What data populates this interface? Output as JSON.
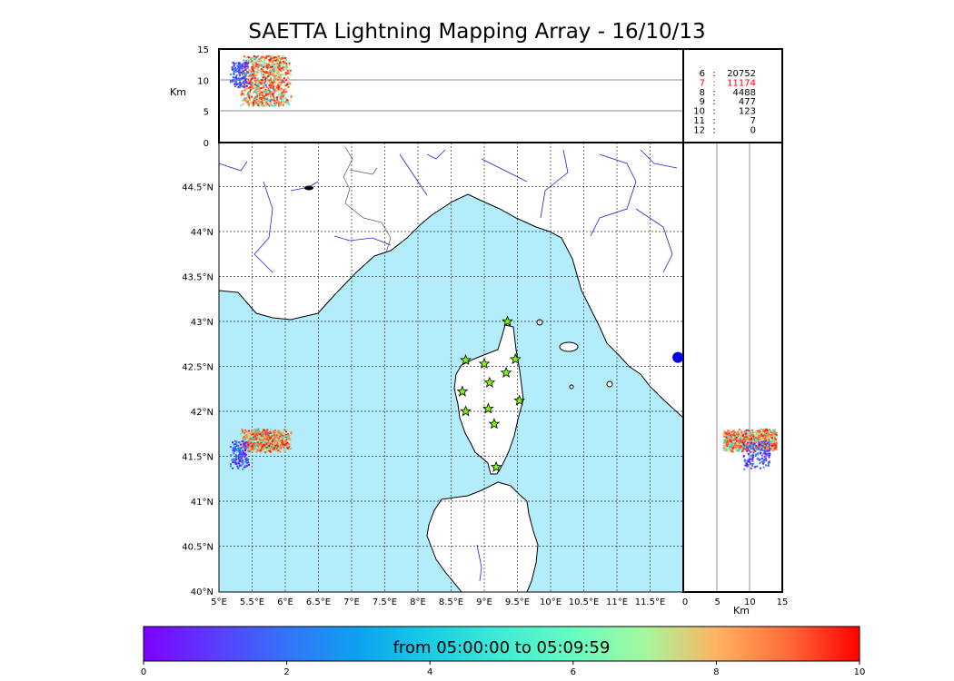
{
  "title": "SAETTA Lightning Mapping Array - 16/10/13",
  "colorbar": {
    "label": "from 05:00:00 to 05:09:59",
    "ticks": [
      "0",
      "2",
      "4",
      "6",
      "8",
      "10"
    ],
    "range": [
      0,
      10
    ]
  },
  "stats": [
    {
      "stations": "6",
      "sep": ":",
      "count": "20752",
      "highlight": false
    },
    {
      "stations": "7",
      "sep": ":",
      "count": "11174",
      "highlight": true
    },
    {
      "stations": "8",
      "sep": ":",
      "count": "4488",
      "highlight": false
    },
    {
      "stations": "9",
      "sep": ":",
      "count": "477",
      "highlight": false
    },
    {
      "stations": "10",
      "sep": ":",
      "count": "123",
      "highlight": false
    },
    {
      "stations": "11",
      "sep": ":",
      "count": "7",
      "highlight": false
    },
    {
      "stations": "12",
      "sep": ":",
      "count": "0",
      "highlight": false
    }
  ],
  "colors": {
    "sea": "#b3ecfb",
    "land": "#ffffff",
    "rivers": "#2222cc",
    "station_marker": "#7cfc00",
    "highlight_text": "#ff0000"
  },
  "chart_data": {
    "type": "scatter",
    "map": {
      "lon_range": [
        5,
        12
      ],
      "lat_range": [
        40,
        45
      ],
      "lon_ticks": [
        "5°E",
        "5.5°E",
        "6°E",
        "6.5°E",
        "7°E",
        "7.5°E",
        "8°E",
        "8.5°E",
        "9°E",
        "9.5°E",
        "10°E",
        "10.5°E",
        "11°E",
        "11.5°E"
      ],
      "lat_ticks": [
        "40°N",
        "40.5°N",
        "41°N",
        "41.5°N",
        "42°N",
        "42.5°N",
        "43°N",
        "43.5°N",
        "44°N",
        "44.5°N"
      ],
      "grid": true
    },
    "altitude_top": {
      "ylabel": "Km",
      "ylim": [
        0,
        15
      ],
      "ticks": [
        "0",
        "5",
        "10",
        "15"
      ]
    },
    "altitude_right": {
      "xlabel": "Km",
      "xlim": [
        0,
        15
      ],
      "ticks": [
        "0",
        "5",
        "10",
        "15"
      ]
    },
    "stations": [
      {
        "lon": 9.35,
        "lat": 43.0
      },
      {
        "lon": 8.72,
        "lat": 42.57
      },
      {
        "lon": 9.0,
        "lat": 42.53
      },
      {
        "lon": 9.47,
        "lat": 42.58
      },
      {
        "lon": 9.33,
        "lat": 42.43
      },
      {
        "lon": 9.08,
        "lat": 42.32
      },
      {
        "lon": 8.67,
        "lat": 42.22
      },
      {
        "lon": 9.53,
        "lat": 42.12
      },
      {
        "lon": 9.06,
        "lat": 42.03
      },
      {
        "lon": 8.72,
        "lat": 42.0
      },
      {
        "lon": 9.15,
        "lat": 41.86
      },
      {
        "lon": 9.18,
        "lat": 41.38
      }
    ],
    "lightning_clusters": [
      {
        "lon_range": [
          5.3,
          6.1
        ],
        "lat_range": [
          41.55,
          41.82
        ],
        "alt_range_km": [
          6,
          14
        ],
        "time_min": [
          0,
          10
        ],
        "dominant": "late"
      },
      {
        "lon_range": [
          5.15,
          5.45
        ],
        "lat_range": [
          41.35,
          41.7
        ],
        "alt_range_km": [
          9,
          13
        ],
        "time_min": [
          0,
          3
        ],
        "dominant": "early"
      }
    ],
    "offmap_marker": {
      "lon": 11.92,
      "lat": 42.6
    }
  }
}
